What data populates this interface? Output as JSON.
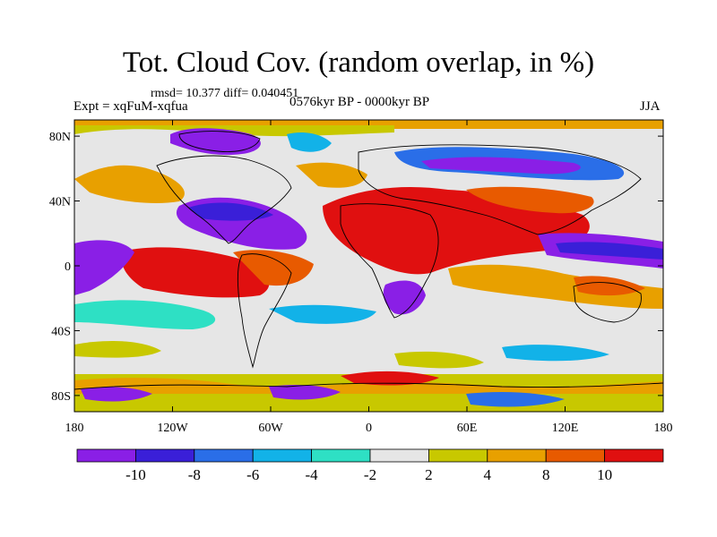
{
  "title": "Tot. Cloud Cov. (random overlap, in %)",
  "stats": "rmsd= 10.377 diff= 0.040451",
  "expt": "Expt = xqFuM-xqfua",
  "period": "0576kyr BP - 0000kyr BP",
  "season": "JJA",
  "lat_labels": [
    "80N",
    "40N",
    "0",
    "40S",
    "80S"
  ],
  "lat_values": [
    80,
    40,
    0,
    -40,
    -80
  ],
  "lon_labels": [
    "180",
    "120W",
    "60W",
    "0",
    "60E",
    "120E",
    "180"
  ],
  "lon_values": [
    -180,
    -120,
    -60,
    0,
    60,
    120,
    180
  ],
  "colorbar": {
    "labels": [
      "-10",
      "-8",
      "-6",
      "-4",
      "-2",
      "2",
      "4",
      "8",
      "10"
    ],
    "colors": [
      "#8a1fe6",
      "#3a1fd8",
      "#2a6ee8",
      "#12b2e8",
      "#2ee0c4",
      "#e6e6e6",
      "#c8c800",
      "#e8a000",
      "#e85a00",
      "#e01010"
    ]
  }
}
